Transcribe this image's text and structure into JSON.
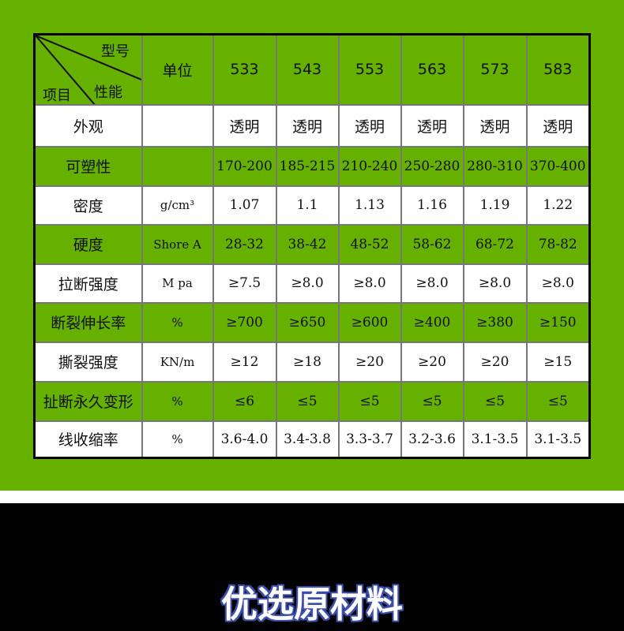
{
  "header": {
    "corner_model": "型号",
    "corner_property": "性能",
    "corner_item": "项目",
    "unit": "单位",
    "models": [
      "533",
      "543",
      "553",
      "563",
      "573",
      "583"
    ]
  },
  "rows": [
    {
      "label": "外观",
      "unit": "",
      "values": [
        "透明",
        "透明",
        "透明",
        "透明",
        "透明",
        "透明"
      ]
    },
    {
      "label": "可塑性",
      "unit": "",
      "values": [
        "170-200",
        "185-215",
        "210-240",
        "250-280",
        "280-310",
        "370-400"
      ]
    },
    {
      "label": "密度",
      "unit": "g/cm³",
      "values": [
        "1.07",
        "1.1",
        "1.13",
        "1.16",
        "1.19",
        "1.22"
      ]
    },
    {
      "label": "硬度",
      "unit": "Shore A",
      "values": [
        "28-32",
        "38-42",
        "48-52",
        "58-62",
        "68-72",
        "78-82"
      ]
    },
    {
      "label": "拉断强度",
      "unit": "M pa",
      "values": [
        "≥7.5",
        "≥8.0",
        "≥8.0",
        "≥8.0",
        "≥8.0",
        "≥8.0"
      ]
    },
    {
      "label": "断裂伸长率",
      "unit": "%",
      "values": [
        "≥700",
        "≥650",
        "≥600",
        "≥400",
        "≥380",
        "≥150"
      ]
    },
    {
      "label": "撕裂强度",
      "unit": "KN/m",
      "values": [
        "≥12",
        "≥18",
        "≥20",
        "≥20",
        "≥20",
        "≥15"
      ]
    },
    {
      "label": "扯断永久变形",
      "unit": "%",
      "values": [
        "≤6",
        "≤5",
        "≤5",
        "≤5",
        "≤5",
        "≤5"
      ]
    },
    {
      "label": "线收缩率",
      "unit": "%",
      "values": [
        "3.6-4.0",
        "3.4-3.8",
        "3.3-3.7",
        "3.2-3.6",
        "3.1-3.5",
        "3.1-3.5"
      ]
    }
  ],
  "section_title": "优选原材料",
  "colors": {
    "green": "#66b000",
    "white": "#ffffff",
    "black": "#020202",
    "title_outline": "#3d4fa8"
  }
}
